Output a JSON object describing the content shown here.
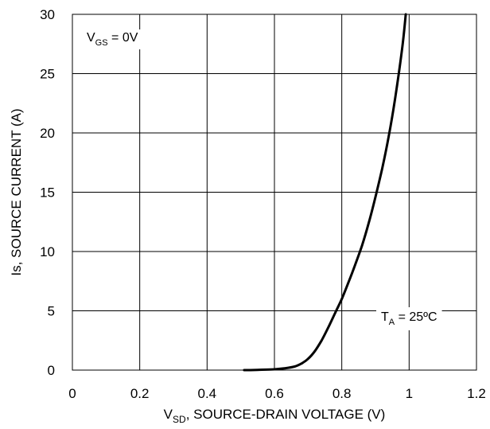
{
  "chart_data": {
    "type": "line",
    "xlabel": {
      "main": "V",
      "sub": "SD",
      "rest": ", SOURCE-DRAIN VOLTAGE (V)"
    },
    "ylabel": "Is, SOURCE CURRENT (A)",
    "xlim": [
      0,
      1.2
    ],
    "ylim": [
      0,
      30
    ],
    "x_ticks": [
      0,
      0.2,
      0.4,
      0.6,
      0.8,
      1,
      1.2
    ],
    "y_ticks": [
      0,
      5,
      10,
      15,
      20,
      25,
      30
    ],
    "x_tick_labels": [
      "0",
      "0.2",
      "0.4",
      "0.6",
      "0.8",
      "1",
      "1.2"
    ],
    "y_tick_labels": [
      "0",
      "5",
      "10",
      "15",
      "20",
      "25",
      "30"
    ],
    "grid": true,
    "annotations": [
      {
        "main": "V",
        "sub": "GS",
        "rest": " = 0V",
        "location": "top-left"
      },
      {
        "main": "T",
        "sub": "A",
        "rest": " = 25ºC",
        "location": "right"
      }
    ],
    "series": [
      {
        "x": [
          0.51,
          0.55,
          0.6,
          0.63,
          0.66,
          0.68,
          0.7,
          0.72,
          0.74,
          0.76,
          0.78,
          0.8,
          0.82,
          0.84,
          0.86,
          0.88,
          0.9,
          0.92,
          0.94,
          0.96,
          0.98,
          0.99
        ],
        "y": [
          0,
          0.02,
          0.07,
          0.15,
          0.3,
          0.55,
          0.95,
          1.6,
          2.5,
          3.6,
          4.8,
          6.0,
          7.4,
          8.9,
          10.5,
          12.4,
          14.6,
          17.0,
          19.8,
          23.2,
          27.3,
          30
        ]
      }
    ]
  }
}
